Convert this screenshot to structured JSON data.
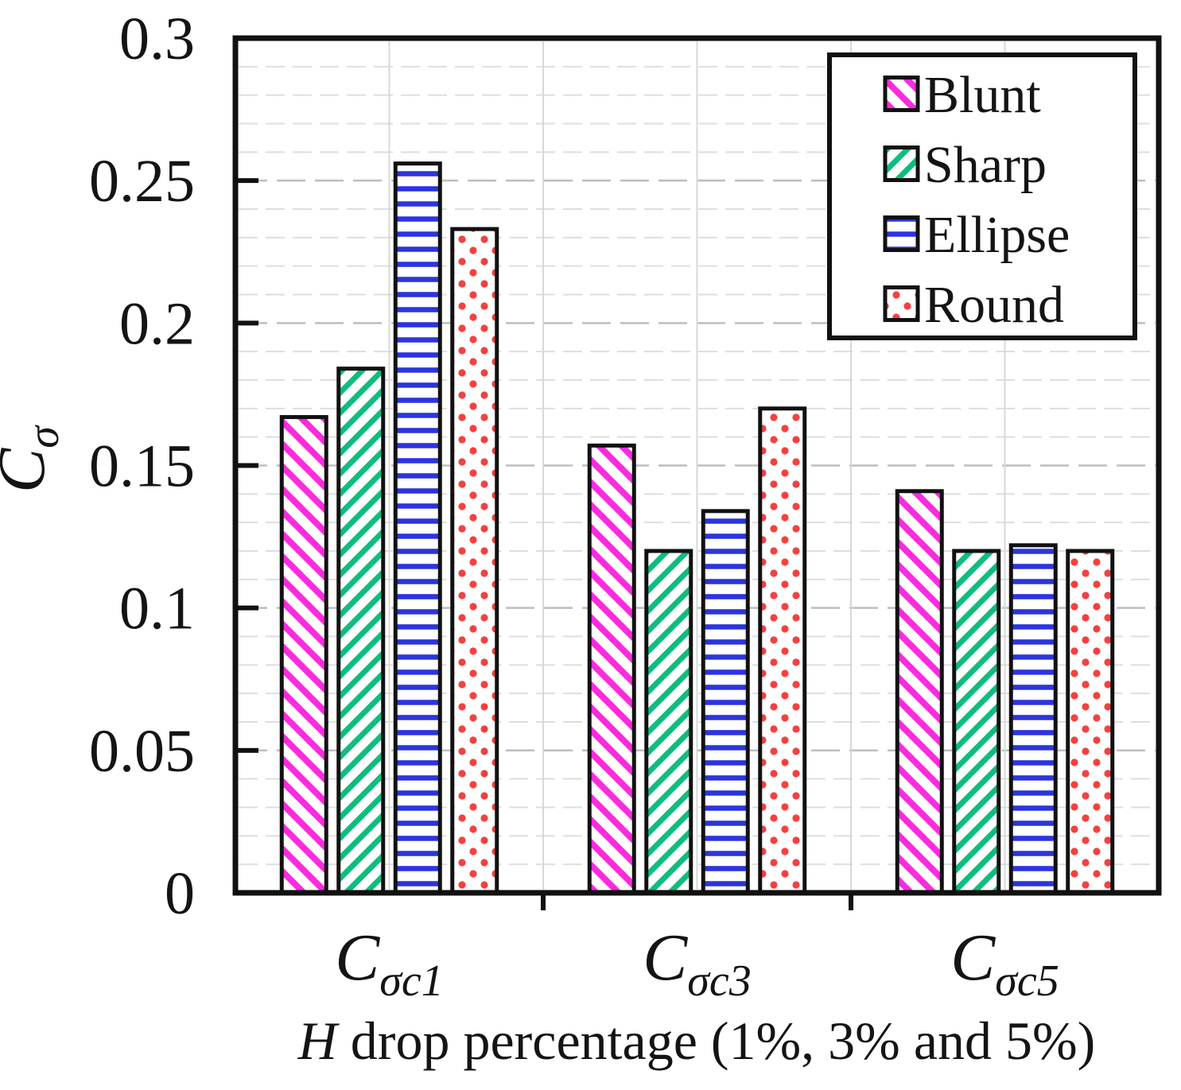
{
  "chart_data": {
    "type": "bar",
    "title": "",
    "categories": [
      {
        "base": "C",
        "sub": "σc1"
      },
      {
        "base": "C",
        "sub": "σc3"
      },
      {
        "base": "C",
        "sub": "σc5"
      }
    ],
    "series": [
      {
        "name": "Blunt",
        "pattern": "diagonal-down",
        "color": "#fb2bdf",
        "values": [
          0.167,
          0.157,
          0.141
        ]
      },
      {
        "name": "Sharp",
        "pattern": "diagonal-up",
        "color": "#0ebd7d",
        "values": [
          0.184,
          0.12,
          0.12
        ]
      },
      {
        "name": "Ellipse",
        "pattern": "horizontal-lines",
        "color": "#2b34df",
        "values": [
          0.256,
          0.134,
          0.122
        ]
      },
      {
        "name": "Round",
        "pattern": "dots",
        "color": "#f54040",
        "values": [
          0.233,
          0.17,
          0.12
        ]
      }
    ],
    "xlabel": {
      "italic": "H",
      "rest": " drop percentage (1%, 3% and 5%)"
    },
    "ylabel": {
      "base": "C",
      "sub": "σ"
    },
    "ylim": [
      0,
      0.3
    ],
    "yticks": [
      {
        "value": 0,
        "label": "0"
      },
      {
        "value": 0.05,
        "label": "0.05"
      },
      {
        "value": 0.1,
        "label": "0.1"
      },
      {
        "value": 0.15,
        "label": "0.15"
      },
      {
        "value": 0.2,
        "label": "0.2"
      },
      {
        "value": 0.25,
        "label": "0.25"
      },
      {
        "value": 0.3,
        "label": "0.3"
      }
    ],
    "minor_y_step": 0.01,
    "grid": {
      "minor_horizontal": true,
      "major_horizontal": true,
      "vertical_half_category": true
    },
    "legend": {
      "position": "top-right"
    }
  },
  "colors": {
    "bar_outline": "#111111",
    "plot_border": "#111111",
    "major_gridline": "#bdbdbd",
    "minor_gridline": "#dedede",
    "vertical_gridline": "#d8d8d8",
    "background": "#ffffff"
  }
}
